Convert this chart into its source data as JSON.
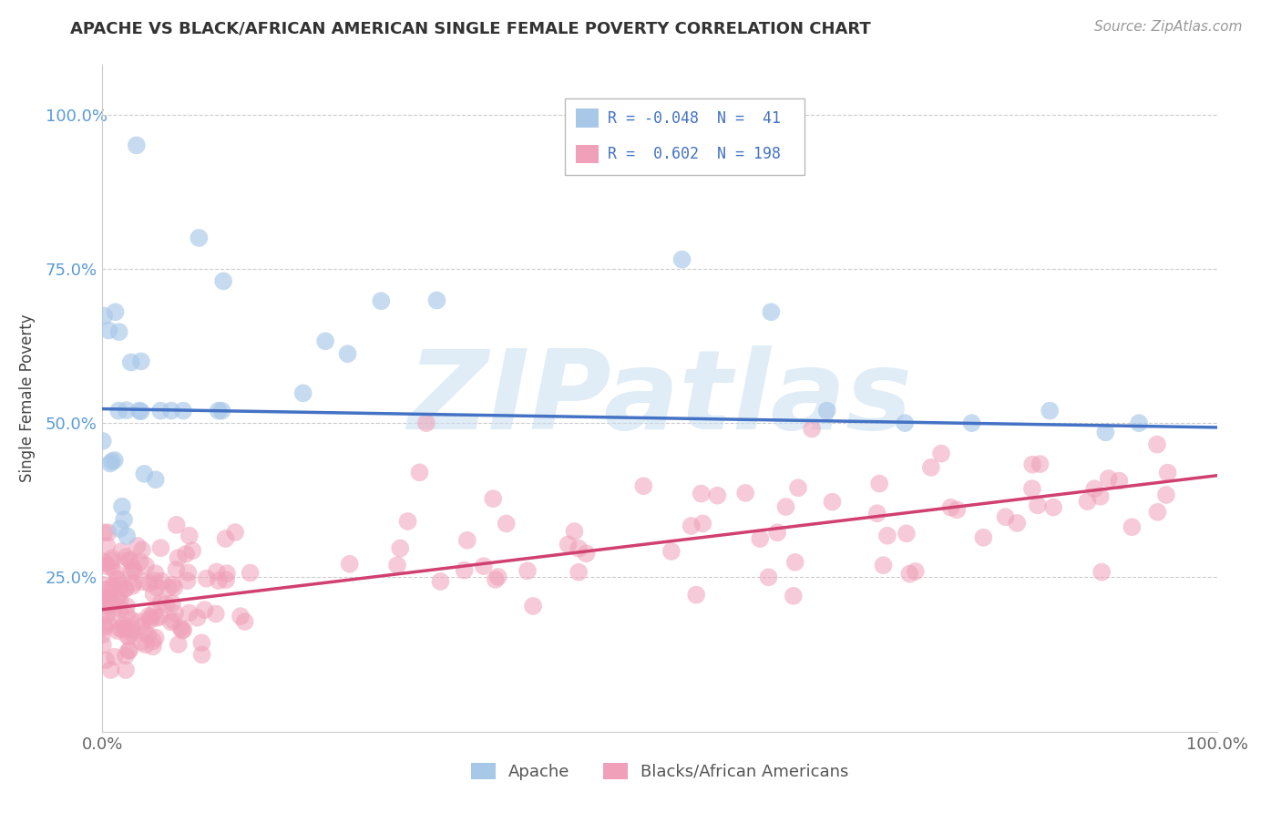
{
  "title": "APACHE VS BLACK/AFRICAN AMERICAN SINGLE FEMALE POVERTY CORRELATION CHART",
  "source": "Source: ZipAtlas.com",
  "ylabel": "Single Female Poverty",
  "watermark": "ZIPatlas",
  "legend_label_1": "Apache",
  "legend_label_2": "Blacks/African Americans",
  "R1": -0.048,
  "N1": 41,
  "R2": 0.602,
  "N2": 198,
  "color_apache": "#a8c8e8",
  "color_black": "#f0a0b8",
  "trendline_apache": "#4472c4",
  "trendline_black": "#d04070",
  "xlim": [
    0.0,
    1.0
  ],
  "ylim": [
    0.0,
    1.08
  ],
  "yticks": [
    0.25,
    0.5,
    0.75,
    1.0
  ],
  "ytick_labels": [
    "25.0%",
    "50.0%",
    "75.0%",
    "100.0%"
  ],
  "xticks": [
    0.0,
    1.0
  ],
  "xtick_labels": [
    "0.0%",
    "100.0%"
  ],
  "background_color": "#ffffff",
  "grid_color": "#cccccc",
  "apache_trendline_start_y": 0.523,
  "apache_trendline_end_y": 0.493,
  "black_trendline_start_y": 0.198,
  "black_trendline_end_y": 0.415
}
